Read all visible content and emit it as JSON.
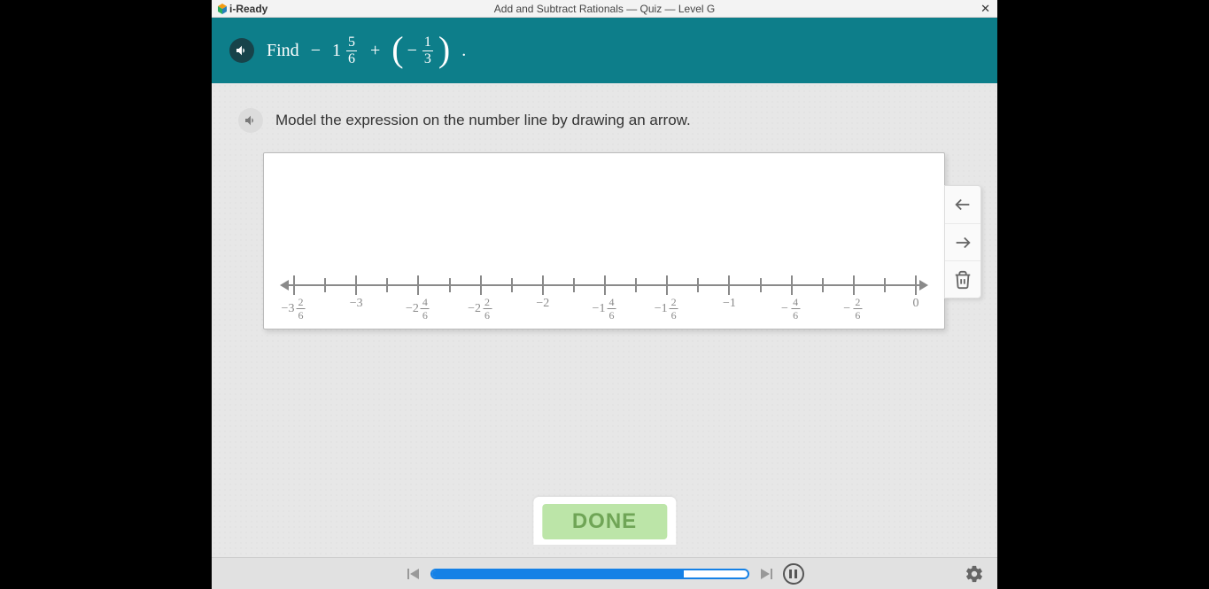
{
  "titlebar": {
    "logo_text": "i-Ready",
    "title": "Add and Subtract Rationals — Quiz — Level G",
    "close_glyph": "✕"
  },
  "header": {
    "prompt_prefix": "Find",
    "expression": {
      "term1_sign": "−",
      "term1_whole": "1",
      "term1_num": "5",
      "term1_den": "6",
      "op": "+",
      "term2_sign": "−",
      "term2_num": "1",
      "term2_den": "3"
    },
    "period": "."
  },
  "instruction": "Model the expression on the number line by drawing an arrow.",
  "numberline": {
    "min_sixths": -20,
    "max_sixths": 0,
    "axis_color": "#8a8a8a",
    "labels": [
      {
        "sixths": -20,
        "type": "mixed",
        "sign": "−",
        "whole": "3",
        "num": "2",
        "den": "6"
      },
      {
        "sixths": -18,
        "type": "int",
        "text": "−3"
      },
      {
        "sixths": -16,
        "type": "mixed",
        "sign": "−",
        "whole": "2",
        "num": "4",
        "den": "6"
      },
      {
        "sixths": -14,
        "type": "mixed",
        "sign": "−",
        "whole": "2",
        "num": "2",
        "den": "6"
      },
      {
        "sixths": -12,
        "type": "int",
        "text": "−2"
      },
      {
        "sixths": -10,
        "type": "mixed",
        "sign": "−",
        "whole": "1",
        "num": "4",
        "den": "6"
      },
      {
        "sixths": -8,
        "type": "mixed",
        "sign": "−",
        "whole": "1",
        "num": "2",
        "den": "6"
      },
      {
        "sixths": -6,
        "type": "int",
        "text": "−1"
      },
      {
        "sixths": -4,
        "type": "frac",
        "sign": "−",
        "num": "4",
        "den": "6"
      },
      {
        "sixths": -2,
        "type": "frac",
        "sign": "−",
        "num": "2",
        "den": "6"
      },
      {
        "sixths": 0,
        "type": "int",
        "text": "0"
      }
    ]
  },
  "tools": {
    "arrow_left": "arrow-left-tool",
    "arrow_right": "arrow-right-tool",
    "trash": "trash-tool"
  },
  "done_label": "DONE",
  "footer": {
    "progress_pct": 80
  },
  "colors": {
    "teal": "#0d7e8a",
    "done_bg": "#bce5a8",
    "done_fg": "#6fa556",
    "progress": "#1581e6"
  }
}
